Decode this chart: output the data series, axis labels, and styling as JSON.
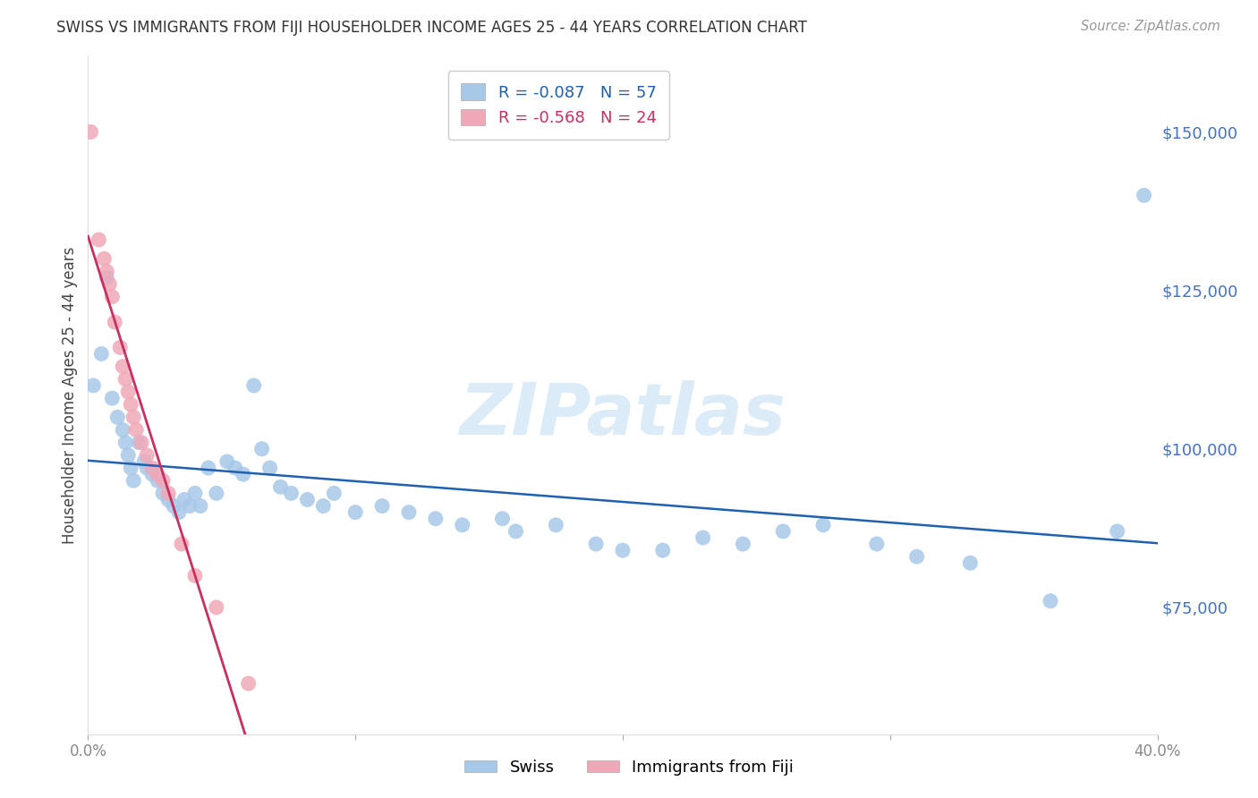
{
  "title": "SWISS VS IMMIGRANTS FROM FIJI HOUSEHOLDER INCOME AGES 25 - 44 YEARS CORRELATION CHART",
  "source": "Source: ZipAtlas.com",
  "ylabel": "Householder Income Ages 25 - 44 years",
  "y_tick_labels": [
    "$75,000",
    "$100,000",
    "$125,000",
    "$150,000"
  ],
  "y_tick_values": [
    75000,
    100000,
    125000,
    150000
  ],
  "ylim": [
    55000,
    162000
  ],
  "xlim": [
    0.0,
    0.4
  ],
  "swiss_color": "#A8C8E8",
  "fiji_color": "#F0A8B8",
  "swiss_line_color": "#2060B0",
  "fiji_line_color": "#C83060",
  "fiji_line_dash_color": "#E898B0",
  "swiss_x": [
    0.002,
    0.005,
    0.007,
    0.009,
    0.011,
    0.013,
    0.014,
    0.015,
    0.016,
    0.017,
    0.019,
    0.021,
    0.022,
    0.024,
    0.026,
    0.028,
    0.03,
    0.032,
    0.034,
    0.036,
    0.038,
    0.04,
    0.042,
    0.045,
    0.048,
    0.052,
    0.055,
    0.058,
    0.062,
    0.065,
    0.068,
    0.072,
    0.076,
    0.082,
    0.088,
    0.092,
    0.1,
    0.11,
    0.12,
    0.13,
    0.14,
    0.155,
    0.16,
    0.175,
    0.19,
    0.2,
    0.215,
    0.23,
    0.245,
    0.26,
    0.275,
    0.295,
    0.31,
    0.33,
    0.36,
    0.385,
    0.395
  ],
  "swiss_y": [
    110000,
    115000,
    127000,
    108000,
    105000,
    103000,
    101000,
    99000,
    97000,
    95000,
    101000,
    98000,
    97000,
    96000,
    95000,
    93000,
    92000,
    91000,
    90000,
    92000,
    91000,
    93000,
    91000,
    97000,
    93000,
    98000,
    97000,
    96000,
    110000,
    100000,
    97000,
    94000,
    93000,
    92000,
    91000,
    93000,
    90000,
    91000,
    90000,
    89000,
    88000,
    89000,
    87000,
    88000,
    85000,
    84000,
    84000,
    86000,
    85000,
    87000,
    88000,
    85000,
    83000,
    82000,
    76000,
    87000,
    140000
  ],
  "fiji_x": [
    0.001,
    0.004,
    0.006,
    0.007,
    0.008,
    0.009,
    0.01,
    0.012,
    0.013,
    0.014,
    0.015,
    0.016,
    0.017,
    0.018,
    0.02,
    0.022,
    0.024,
    0.026,
    0.028,
    0.03,
    0.035,
    0.04,
    0.048,
    0.06
  ],
  "fiji_y": [
    150000,
    133000,
    130000,
    128000,
    126000,
    124000,
    120000,
    116000,
    113000,
    111000,
    109000,
    107000,
    105000,
    103000,
    101000,
    99000,
    97000,
    96000,
    95000,
    93000,
    85000,
    80000,
    75000,
    63000
  ],
  "fiji_line_x_end_solid": 0.065,
  "fiji_line_x_end_dash": 0.135,
  "watermark_text": "ZIPatlas",
  "background_color": "#FFFFFF",
  "grid_color": "#CCCCCC",
  "dot_size": 150
}
